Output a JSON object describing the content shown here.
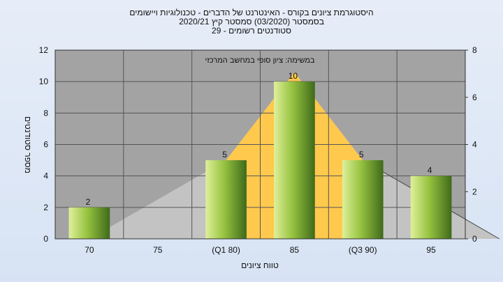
{
  "chart_data": {
    "type": "bar",
    "title_lines": [
      "היסטוגרמת ציונים בקורס - האינטרנט של הדברים - טכנולוגיות ויישומים",
      "בסמסטר  (03/2020)  סמסטר קיץ  2020/21",
      "סטודנטים רשומים - 29"
    ],
    "subtitle": "במשימה: ציון סופי במחשב המרכזי",
    "xlabel": "טווח ציונים",
    "ylabel": "מספר סטודנטים",
    "categories": [
      "70",
      "75",
      "(Q1 80)",
      "85",
      "(Q3 90)",
      "95"
    ],
    "values": [
      2,
      0,
      5,
      10,
      5,
      4
    ],
    "data_labels": [
      "2",
      "",
      "5",
      "10",
      "5",
      "4"
    ],
    "ylim": [
      0,
      12
    ],
    "yticks": [
      "0",
      "2",
      "4",
      "6",
      "8",
      "10",
      "12"
    ],
    "y2lim": [
      0,
      8
    ],
    "y2ticks": [
      "0",
      "2",
      "4",
      "6",
      "8"
    ],
    "grid": true,
    "background_shape": {
      "name": "distribution-curve",
      "x": [
        0.5,
        2.5,
        4.5,
        6.5
      ],
      "y": [
        0,
        5,
        5,
        0
      ],
      "peak_x": 3.5,
      "peak_y": 10.6
    },
    "colors": {
      "bar_light": "#dff09a",
      "bar_mid": "#96c340",
      "bar_dark": "#3f6a1a",
      "plot_bg": "#a3a3a3",
      "curve_fill": "#c3c3c3",
      "iqr_fill": "#ffc94d",
      "grid": "#555555"
    }
  }
}
